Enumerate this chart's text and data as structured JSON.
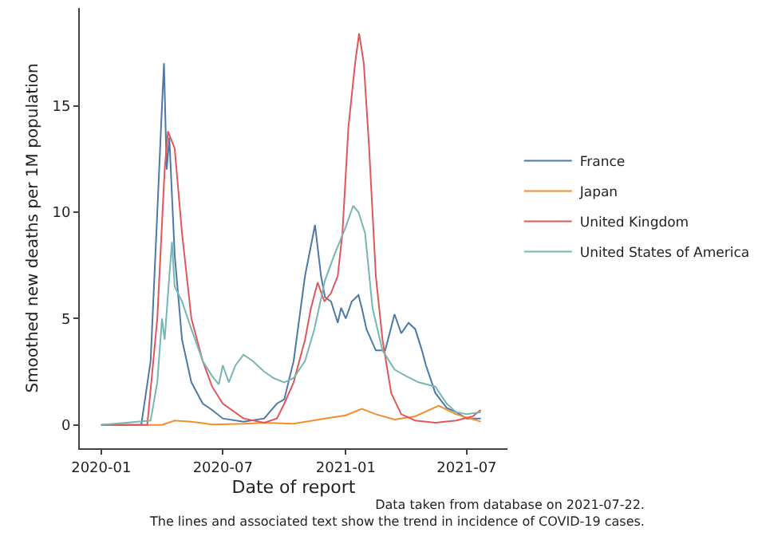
{
  "chart_data": {
    "type": "line",
    "xlabel": "Date of report",
    "ylabel": "Smoothed new deaths per 1M population",
    "xlim": [
      "2019-11-30",
      "2021-08-31"
    ],
    "xticks": [
      {
        "value": "2020-01-01",
        "label": "2020-01"
      },
      {
        "value": "2020-07-01",
        "label": "2020-07"
      },
      {
        "value": "2021-01-01",
        "label": "2021-01"
      },
      {
        "value": "2021-07-01",
        "label": "2021-07"
      }
    ],
    "ylim": [
      -1.1,
      19.6
    ],
    "yticks": [
      0,
      5,
      10,
      15
    ],
    "grid": false,
    "legend": "right",
    "annotations": [
      "Data taken from database on 2021-07-22.",
      "The lines and associated text show the trend in incidence of COVID-19 cases."
    ],
    "series": [
      {
        "name": "France",
        "color": "#4e79a7",
        "x": [
          "2020-01-01",
          "2020-03-01",
          "2020-03-15",
          "2020-03-25",
          "2020-04-01",
          "2020-04-04",
          "2020-04-08",
          "2020-04-12",
          "2020-04-20",
          "2020-05-01",
          "2020-05-15",
          "2020-06-01",
          "2020-06-15",
          "2020-07-01",
          "2020-08-01",
          "2020-09-01",
          "2020-09-20",
          "2020-10-01",
          "2020-10-15",
          "2020-11-01",
          "2020-11-16",
          "2020-11-25",
          "2020-12-01",
          "2020-12-10",
          "2020-12-20",
          "2020-12-25",
          "2021-01-01",
          "2021-01-10",
          "2021-01-20",
          "2021-01-25",
          "2021-02-01",
          "2021-02-15",
          "2021-03-01",
          "2021-03-15",
          "2021-03-25",
          "2021-04-05",
          "2021-04-15",
          "2021-04-25",
          "2021-05-01",
          "2021-05-15",
          "2021-06-01",
          "2021-06-15",
          "2021-07-01",
          "2021-07-22"
        ],
        "values": [
          0,
          0,
          3,
          10,
          15,
          17,
          12,
          13.5,
          8,
          4,
          2,
          1,
          0.7,
          0.3,
          0.15,
          0.3,
          1,
          1.2,
          3,
          7,
          9.4,
          7,
          6,
          5.8,
          4.8,
          5.5,
          5,
          5.8,
          6.1,
          5.5,
          4.5,
          3.5,
          3.5,
          5.2,
          4.3,
          4.8,
          4.5,
          3.5,
          2.8,
          1.5,
          0.8,
          0.6,
          0.3,
          0.3
        ]
      },
      {
        "name": "Japan",
        "color": "#f28e2b",
        "x": [
          "2020-01-01",
          "2020-04-01",
          "2020-04-20",
          "2020-05-15",
          "2020-06-15",
          "2020-08-01",
          "2020-09-01",
          "2020-10-15",
          "2020-12-01",
          "2021-01-01",
          "2021-01-25",
          "2021-02-15",
          "2021-03-15",
          "2021-04-15",
          "2021-05-20",
          "2021-06-15",
          "2021-07-22"
        ],
        "values": [
          0,
          0,
          0.2,
          0.15,
          0.02,
          0.05,
          0.1,
          0.05,
          0.3,
          0.45,
          0.75,
          0.5,
          0.25,
          0.4,
          0.9,
          0.5,
          0.15
        ]
      },
      {
        "name": "United Kingdom",
        "color": "#e15759",
        "x": [
          "2020-01-01",
          "2020-03-10",
          "2020-03-25",
          "2020-04-05",
          "2020-04-10",
          "2020-04-20",
          "2020-05-01",
          "2020-05-15",
          "2020-06-01",
          "2020-06-15",
          "2020-07-01",
          "2020-08-01",
          "2020-09-01",
          "2020-09-20",
          "2020-10-01",
          "2020-10-15",
          "2020-11-01",
          "2020-11-10",
          "2020-11-20",
          "2020-11-30",
          "2020-12-10",
          "2020-12-20",
          "2020-12-27",
          "2021-01-05",
          "2021-01-15",
          "2021-01-21",
          "2021-01-28",
          "2021-02-05",
          "2021-02-15",
          "2021-02-25",
          "2021-03-10",
          "2021-03-25",
          "2021-04-15",
          "2021-05-15",
          "2021-06-15",
          "2021-07-10",
          "2021-07-22"
        ],
        "values": [
          0,
          0,
          5,
          12,
          13.8,
          13,
          9,
          5,
          3,
          1.8,
          1,
          0.3,
          0.1,
          0.3,
          1,
          2,
          4,
          5.5,
          6.7,
          5.8,
          6.2,
          7,
          9,
          14,
          17,
          18.4,
          17,
          13,
          7,
          4,
          1.5,
          0.5,
          0.2,
          0.1,
          0.2,
          0.4,
          0.7
        ]
      },
      {
        "name": "United States of America",
        "color": "#76b7b2",
        "x": [
          "2020-01-01",
          "2020-03-15",
          "2020-03-25",
          "2020-04-01",
          "2020-04-05",
          "2020-04-12",
          "2020-04-16",
          "2020-04-20",
          "2020-05-01",
          "2020-05-15",
          "2020-06-01",
          "2020-06-15",
          "2020-06-25",
          "2020-07-01",
          "2020-07-10",
          "2020-07-20",
          "2020-08-01",
          "2020-08-15",
          "2020-09-01",
          "2020-09-15",
          "2020-10-01",
          "2020-10-15",
          "2020-11-01",
          "2020-11-15",
          "2020-12-01",
          "2020-12-15",
          "2021-01-01",
          "2021-01-12",
          "2021-01-20",
          "2021-01-30",
          "2021-02-10",
          "2021-02-25",
          "2021-03-15",
          "2021-04-01",
          "2021-04-20",
          "2021-05-15",
          "2021-06-01",
          "2021-06-15",
          "2021-07-01",
          "2021-07-22"
        ],
        "values": [
          0,
          0.2,
          2,
          5,
          4,
          7,
          8.6,
          6.5,
          5.8,
          4.5,
          3,
          2.3,
          1.9,
          2.8,
          2,
          2.8,
          3.3,
          3,
          2.5,
          2.2,
          2,
          2.2,
          3,
          4.5,
          6.8,
          8,
          9.3,
          10.3,
          10,
          9,
          5.5,
          3.5,
          2.6,
          2.3,
          2,
          1.8,
          1,
          0.6,
          0.5,
          0.6
        ]
      }
    ]
  }
}
